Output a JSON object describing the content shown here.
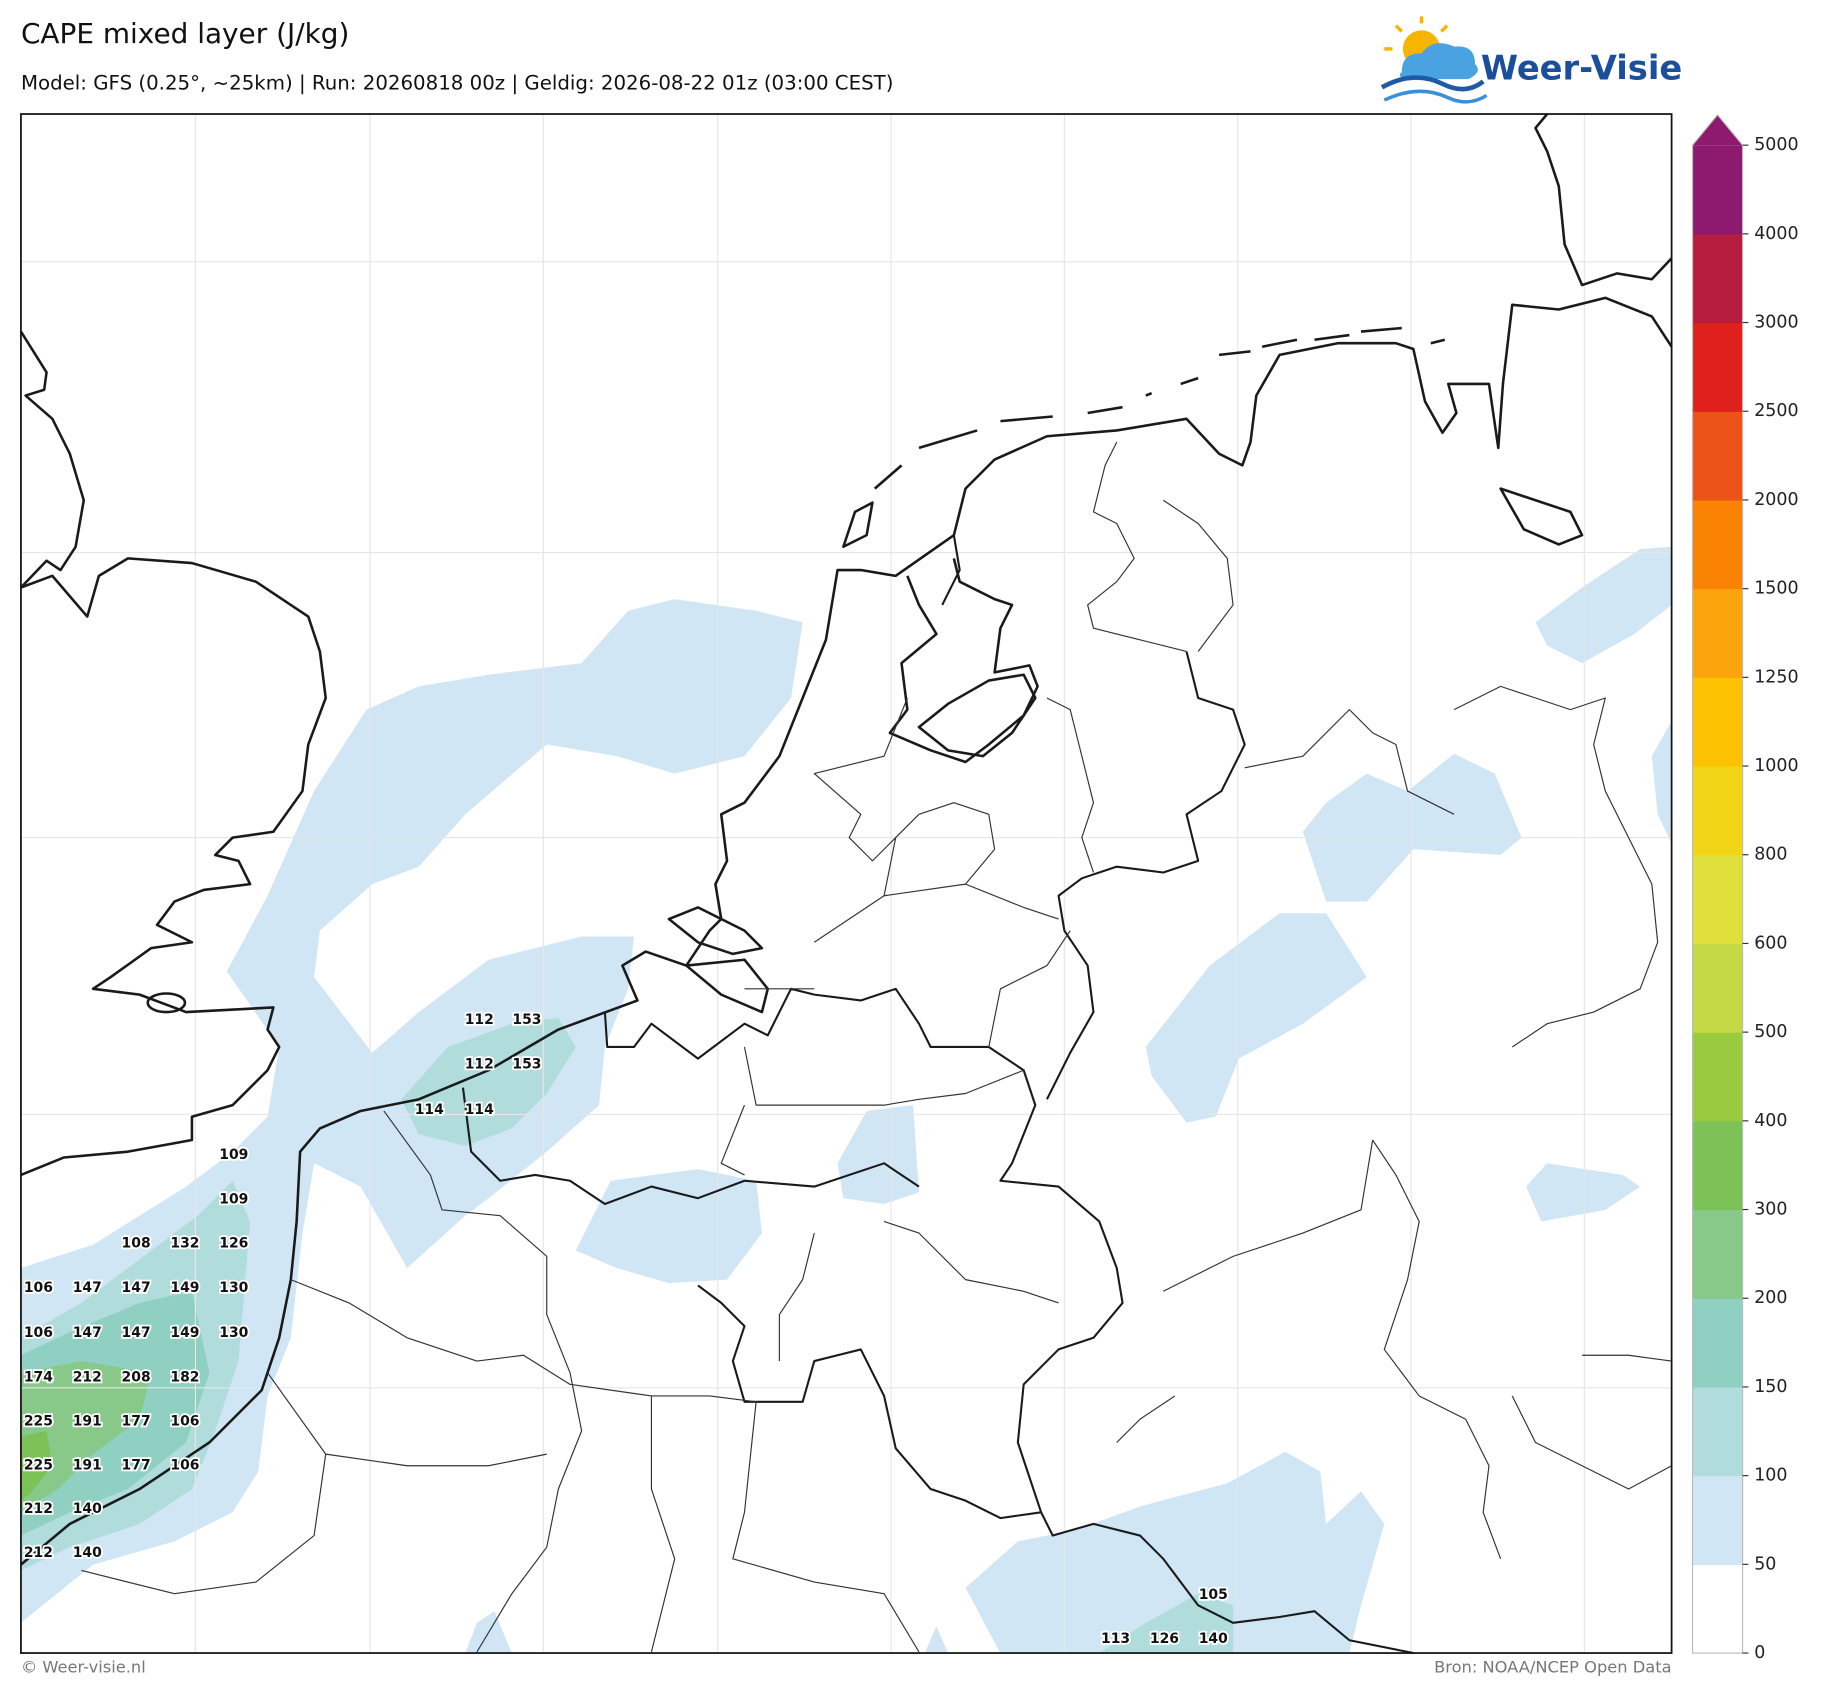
{
  "header": {
    "title": "CAPE mixed layer (J/kg)",
    "subtitle": "Model: GFS (0.25°, ~25km)  |  Run: 20260818 00z  |  Geldig: 2026-08-22 01z (03:00 CEST)",
    "logo": "Weer-Visie"
  },
  "map": {
    "labels": [
      [
        112,
        153
      ],
      [
        112,
        153
      ],
      [
        114,
        114
      ],
      [
        109
      ],
      [
        109
      ],
      [
        108,
        132,
        126
      ],
      [
        106,
        147,
        147,
        149,
        130
      ],
      [
        106,
        147,
        147,
        149,
        130
      ],
      [
        174,
        212,
        208,
        182
      ],
      [
        225,
        191,
        177,
        106
      ],
      [
        225,
        191,
        177,
        106
      ],
      [
        212,
        140
      ],
      [
        212,
        140
      ],
      [
        105
      ],
      [
        113,
        126,
        140
      ]
    ],
    "colorbar": {
      "ticks": [
        0,
        50,
        100,
        150,
        200,
        300,
        400,
        500,
        600,
        800,
        1000,
        1250,
        1500,
        2000,
        2500,
        3000,
        4000,
        5000
      ],
      "colors": [
        "#ffffff",
        "#d0e6f5",
        "#b0dcdc",
        "#8fd0c2",
        "#88c98a",
        "#7cc257",
        "#9acb3f",
        "#c4d944",
        "#dfe03b",
        "#f2d516",
        "#fcc201",
        "#fca40b",
        "#fa8304",
        "#ec5316",
        "#df201d",
        "#b61c3d",
        "#8e1a6f"
      ]
    }
  },
  "footer": {
    "left": "© Weer-visie.nl",
    "right": "Bron: NOAA/NCEP Open Data"
  }
}
